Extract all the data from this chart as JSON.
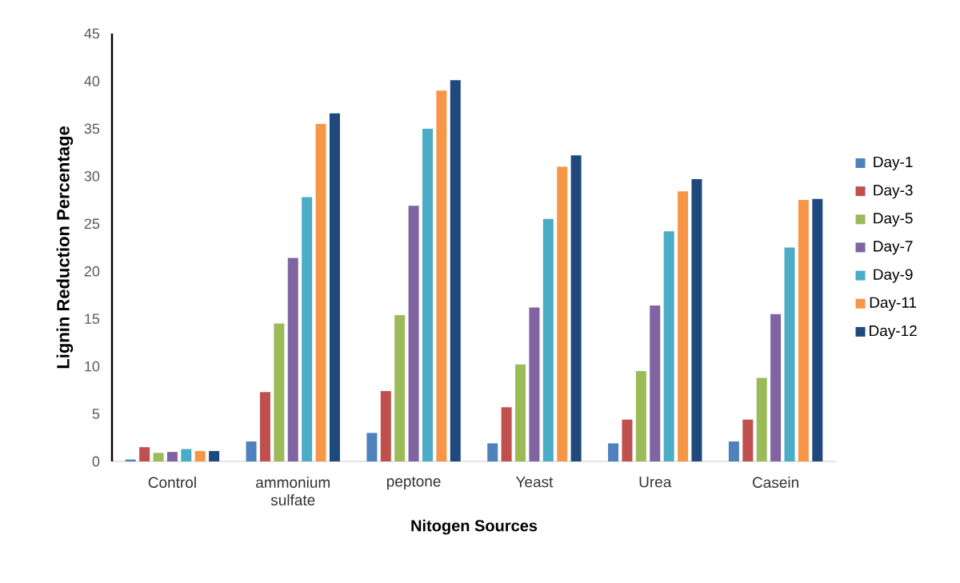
{
  "chart_data": {
    "type": "bar",
    "xlabel": "Nitogen Sources",
    "ylabel": "Lignin Reduction Percentage",
    "categories": [
      "Control",
      "ammonium sulfate",
      "peptone",
      "Yeast",
      "Urea",
      "Casein"
    ],
    "series": [
      {
        "name": "Day-1",
        "color": "#4f81bd",
        "values": [
          0.2,
          2.1,
          3.0,
          1.9,
          1.9,
          2.1
        ]
      },
      {
        "name": "Day-3",
        "color": "#c0504d",
        "values": [
          1.5,
          7.3,
          7.4,
          5.7,
          4.4,
          4.4
        ]
      },
      {
        "name": "Day-5",
        "color": "#9bbb59",
        "values": [
          0.9,
          14.5,
          15.4,
          10.2,
          9.5,
          8.8
        ]
      },
      {
        "name": "Day-7",
        "color": "#8064a2",
        "values": [
          1.0,
          21.4,
          26.9,
          16.2,
          16.4,
          15.5
        ]
      },
      {
        "name": "Day-9",
        "color": "#4bacc6",
        "values": [
          1.3,
          27.8,
          35.0,
          25.5,
          24.2,
          22.5
        ]
      },
      {
        "name": "Day-11",
        "color": "#f79646",
        "values": [
          1.1,
          35.5,
          39.0,
          31.0,
          28.4,
          27.5
        ]
      },
      {
        "name": "Day-12",
        "color": "#1f497d",
        "values": [
          1.1,
          36.6,
          40.1,
          32.2,
          29.7,
          27.6
        ]
      }
    ],
    "ylim": [
      0,
      45
    ],
    "yticks": [
      0,
      5,
      10,
      15,
      20,
      25,
      30,
      35,
      40,
      45
    ],
    "grid": false,
    "legend": "right"
  }
}
